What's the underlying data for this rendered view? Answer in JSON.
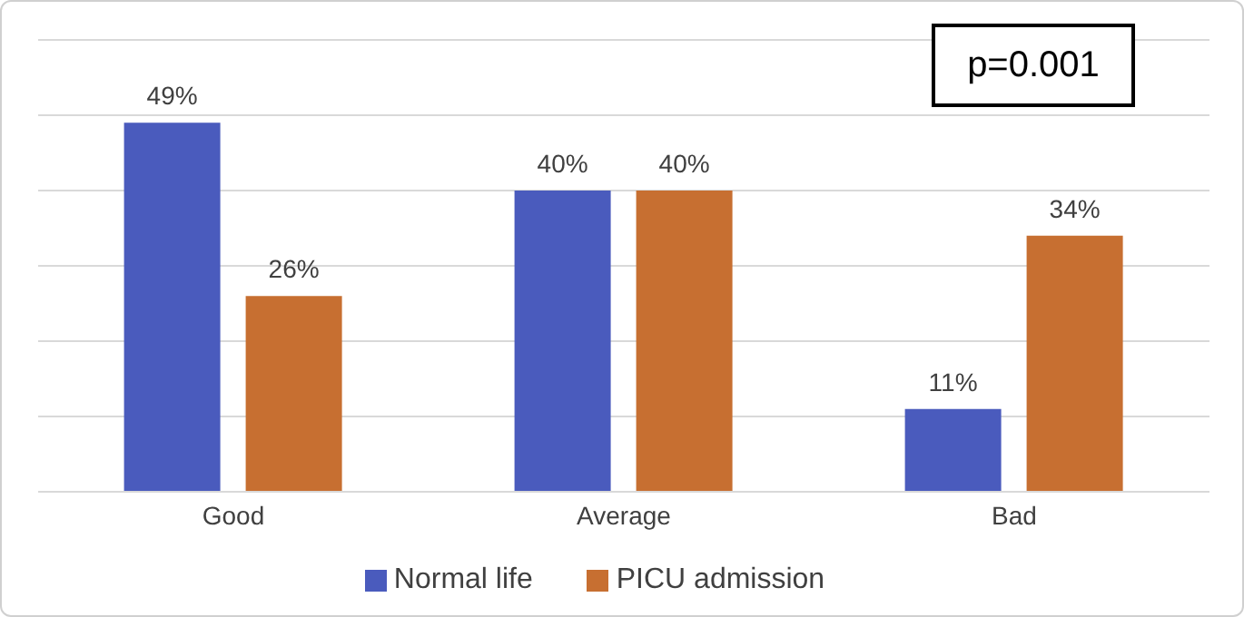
{
  "chart_data": {
    "type": "bar",
    "categories": [
      "Good",
      "Average",
      "Bad"
    ],
    "series": [
      {
        "name": "Normal life",
        "color": "#4a5bbd",
        "values": [
          49,
          40,
          11
        ],
        "value_labels": [
          "49%",
          "40%",
          "11%"
        ]
      },
      {
        "name": "PICU admission",
        "color": "#c76f31",
        "values": [
          26,
          40,
          34
        ],
        "value_labels": [
          "26%",
          "40%",
          "34%"
        ]
      }
    ],
    "ylim": [
      0,
      60
    ],
    "yticks": [
      {
        "value": 0,
        "label": null
      },
      {
        "value": 10,
        "label": null
      },
      {
        "value": 20,
        "label": null
      },
      {
        "value": 30,
        "label": null
      },
      {
        "value": 40,
        "label": null
      },
      {
        "value": 50,
        "label": null
      },
      {
        "value": 60,
        "label": null
      }
    ],
    "tick_labels": "x",
    "grid": "y",
    "legend": "bottom",
    "annotations": [
      "p=0.001"
    ]
  }
}
